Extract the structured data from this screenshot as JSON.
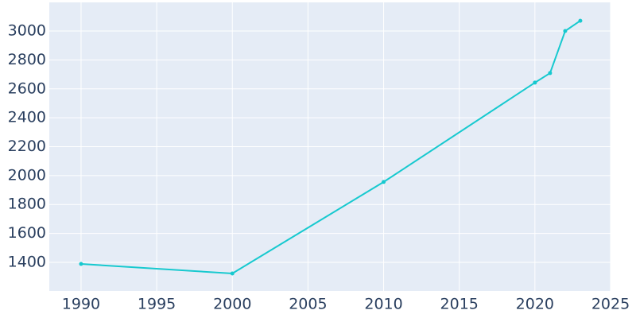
{
  "chart_data": {
    "type": "line",
    "x": [
      1990,
      2000,
      2010,
      2020,
      2021,
      2022,
      2023
    ],
    "series": [
      {
        "color": "#17c9cf",
        "values": [
          1389,
          1323,
          1956,
          2643,
          2709,
          3000,
          3071
        ]
      }
    ],
    "xlim": [
      1987.9,
      2025
    ],
    "ylim": [
      1202,
      3198
    ],
    "xticks": [
      1990,
      1995,
      2000,
      2005,
      2010,
      2015,
      2020,
      2025
    ],
    "yticks": [
      1400,
      1600,
      1800,
      2000,
      2200,
      2400,
      2600,
      2800,
      3000
    ],
    "grid": true,
    "plot_background": "#e5ecf6"
  }
}
